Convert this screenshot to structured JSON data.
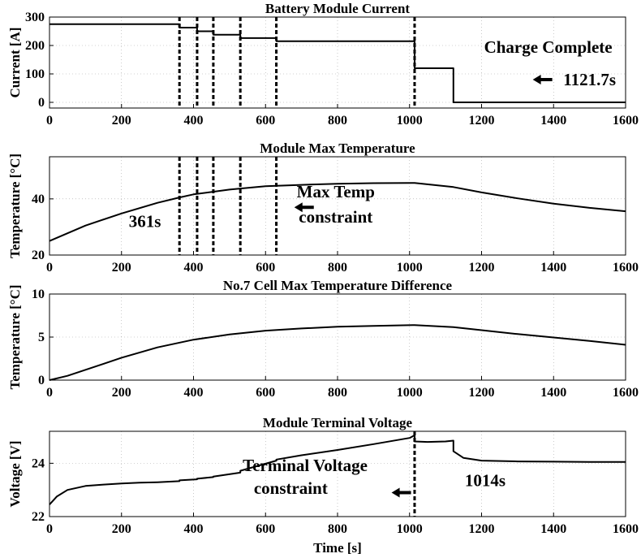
{
  "chart_data": [
    {
      "id": "current",
      "type": "line",
      "title": "Battery Module Current",
      "xlabel": "",
      "ylabel": "Current [A]",
      "xlim": [
        0,
        1600
      ],
      "ylim": [
        -20,
        300
      ],
      "xticks": [
        "0",
        "200",
        "400",
        "600",
        "800",
        "1000",
        "1200",
        "1400",
        "1600"
      ],
      "yticks": [
        "0",
        "100",
        "200",
        "300"
      ],
      "ytick_values": [
        0,
        100,
        200,
        300
      ],
      "grid": true,
      "series": [
        {
          "name": "Current",
          "x": [
            0,
            361,
            361,
            410,
            410,
            455,
            455,
            530,
            530,
            630,
            630,
            1014,
            1014,
            1121.7,
            1121.7,
            1600
          ],
          "y": [
            275,
            275,
            263,
            263,
            250,
            250,
            238,
            238,
            226,
            226,
            215,
            215,
            120,
            120,
            0,
            0
          ]
        }
      ],
      "vlines": [
        361,
        410,
        455,
        530,
        630,
        1014
      ],
      "annotations": [
        {
          "text": "Charge Complete",
          "x": 1385,
          "y": 175
        },
        {
          "text": "1121.7s",
          "x": 1500,
          "y": 60,
          "arrow": true
        }
      ]
    },
    {
      "id": "maxtemp",
      "type": "line",
      "title": "Module Max Temperature",
      "xlabel": "",
      "ylabel": "Temperature [°C]",
      "xlim": [
        0,
        1600
      ],
      "ylim": [
        20,
        55
      ],
      "xticks": [
        "0",
        "200",
        "400",
        "600",
        "800",
        "1000",
        "1200",
        "1400",
        "1600"
      ],
      "yticks": [
        "20",
        "40"
      ],
      "ytick_values": [
        20,
        40
      ],
      "grid": true,
      "series": [
        {
          "name": "Max Temperature",
          "x": [
            0,
            100,
            200,
            300,
            361,
            400,
            500,
            600,
            700,
            800,
            900,
            1014,
            1121.7,
            1200,
            1300,
            1400,
            1500,
            1600
          ],
          "y": [
            25,
            30.5,
            34.8,
            38.6,
            40.5,
            41.6,
            43.3,
            44.5,
            45.0,
            45.4,
            45.6,
            45.7,
            44.2,
            42.3,
            40.2,
            38.3,
            36.8,
            35.6
          ]
        }
      ],
      "vlines": [
        361,
        410,
        455,
        530,
        630
      ],
      "annotations": [
        {
          "text": "361s",
          "x": 265,
          "y": 30
        },
        {
          "text": "Max Temp",
          "x": 795,
          "y": 40.5
        },
        {
          "text": "constraint",
          "x": 795,
          "y": 31.5
        },
        {
          "arrow_only": true,
          "x": 680,
          "y": 37
        }
      ]
    },
    {
      "id": "tempdiff",
      "type": "line",
      "title": "No.7 Cell Max Temperature Difference",
      "xlabel": "",
      "ylabel": "Temperature [°C]",
      "xlim": [
        0,
        1600
      ],
      "ylim": [
        0,
        10
      ],
      "xticks": [
        "0",
        "200",
        "400",
        "600",
        "800",
        "1000",
        "1200",
        "1400",
        "1600"
      ],
      "yticks": [
        "0",
        "5",
        "10"
      ],
      "ytick_values": [
        0,
        5,
        10
      ],
      "grid": true,
      "series": [
        {
          "name": "Temperature Difference",
          "x": [
            0,
            50,
            100,
            150,
            200,
            300,
            400,
            500,
            600,
            700,
            800,
            900,
            1014,
            1121.7,
            1200,
            1300,
            1400,
            1500,
            1600
          ],
          "y": [
            0,
            0.5,
            1.2,
            1.9,
            2.6,
            3.8,
            4.7,
            5.3,
            5.75,
            6.0,
            6.2,
            6.3,
            6.4,
            6.15,
            5.8,
            5.35,
            4.95,
            4.55,
            4.1
          ]
        }
      ],
      "vlines": [],
      "annotations": []
    },
    {
      "id": "voltage",
      "type": "line",
      "title": "Module Terminal Voltage",
      "xlabel": "Time [s]",
      "ylabel": "Voltage [V]",
      "xlim": [
        0,
        1600
      ],
      "ylim": [
        22,
        25.2
      ],
      "xticks": [
        "0",
        "200",
        "400",
        "600",
        "800",
        "1000",
        "1200",
        "1400",
        "1600"
      ],
      "yticks": [
        "22",
        "24"
      ],
      "ytick_values": [
        22,
        24
      ],
      "grid": true,
      "series": [
        {
          "name": "Voltage",
          "x": [
            0,
            20,
            50,
            100,
            150,
            200,
            250,
            300,
            361,
            361,
            410,
            410,
            455,
            455,
            530,
            530,
            630,
            630,
            700,
            800,
            900,
            1000,
            1014,
            1014,
            1050,
            1100,
            1121.7,
            1121.7,
            1150,
            1200,
            1300,
            1400,
            1500,
            1600
          ],
          "y": [
            22.45,
            22.75,
            23.0,
            23.15,
            23.2,
            23.24,
            23.27,
            23.29,
            23.33,
            23.36,
            23.4,
            23.42,
            23.48,
            23.5,
            23.65,
            23.72,
            24.1,
            24.14,
            24.3,
            24.5,
            24.72,
            24.95,
            25.05,
            24.82,
            24.8,
            24.82,
            24.85,
            24.45,
            24.2,
            24.1,
            24.07,
            24.06,
            24.05,
            24.05
          ]
        }
      ],
      "vlines": [
        1014
      ],
      "annotations": [
        {
          "text": "Terminal Voltage",
          "x": 710,
          "y": 23.7
        },
        {
          "text": "constraint",
          "x": 670,
          "y": 22.85
        },
        {
          "arrow_only": true,
          "x": 950,
          "y": 22.9
        },
        {
          "text": "1014s",
          "x": 1210,
          "y": 23.15
        }
      ]
    }
  ]
}
